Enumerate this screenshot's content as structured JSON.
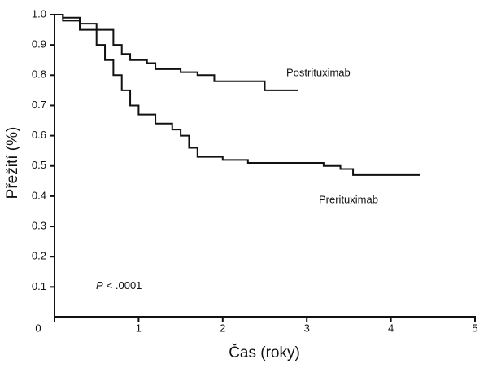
{
  "chart_data": {
    "type": "step",
    "x_label": "Čas (roky)",
    "y_label": "Přežití (%)",
    "xlim": [
      0,
      5
    ],
    "xticks": [
      0,
      1,
      2,
      3,
      4,
      5
    ],
    "ylim": [
      0,
      1
    ],
    "yticks": [
      0.1,
      0.2,
      0.3,
      0.4,
      0.5,
      0.6,
      0.7,
      0.8,
      0.9,
      {
        "value": 1,
        "label": "1.0"
      }
    ],
    "grid": false,
    "annotations": [
      "P",
      "< .0001"
    ],
    "series": [
      {
        "name": "Postrituximab",
        "color": "#111111",
        "x": [
          0,
          0.1,
          0.3,
          0.5,
          0.7,
          0.8,
          0.9,
          1.1,
          1.2,
          1.5,
          1.7,
          1.9,
          2.5,
          2.5,
          2.9
        ],
        "values": [
          1.0,
          0.99,
          0.97,
          0.95,
          0.9,
          0.87,
          0.85,
          0.84,
          0.82,
          0.81,
          0.8,
          0.78,
          0.78,
          0.75,
          0.75
        ]
      },
      {
        "name": "Prerituximab",
        "color": "#111111",
        "x": [
          0,
          0.1,
          0.3,
          0.5,
          0.6,
          0.7,
          0.8,
          0.9,
          1.0,
          1.2,
          1.4,
          1.5,
          1.6,
          1.7,
          2.0,
          2.3,
          3.2,
          3.4,
          3.55,
          4.35
        ],
        "values": [
          1.0,
          0.98,
          0.95,
          0.9,
          0.85,
          0.8,
          0.75,
          0.7,
          0.67,
          0.64,
          0.62,
          0.6,
          0.56,
          0.53,
          0.52,
          0.51,
          0.5,
          0.49,
          0.47,
          0.47
        ]
      }
    ]
  }
}
